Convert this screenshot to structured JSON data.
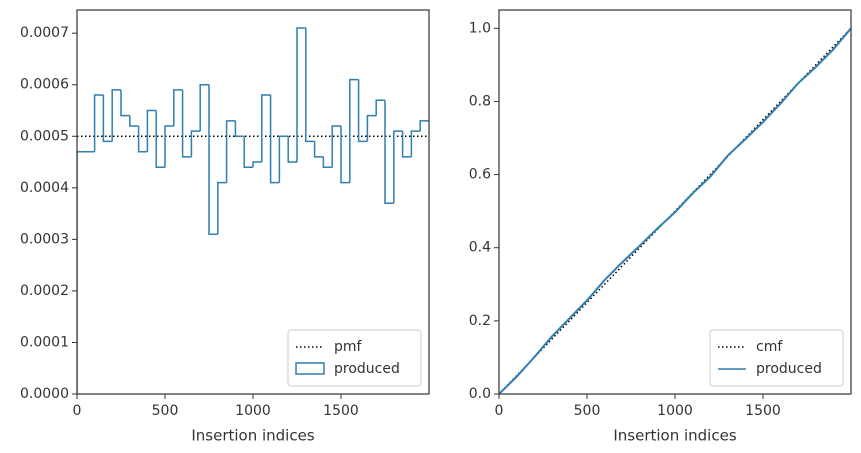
{
  "chart_data": [
    {
      "type": "histogram",
      "xlabel": "Insertion indices",
      "xlim": [
        0,
        2000
      ],
      "xticks": [
        0,
        500,
        1000,
        1500
      ],
      "ylim": [
        0,
        0.000745
      ],
      "yticks": [
        {
          "value": 0,
          "label": "0.0000"
        },
        {
          "value": 0.0001,
          "label": "0.0001"
        },
        {
          "value": 0.0002,
          "label": "0.0002"
        },
        {
          "value": 0.0003,
          "label": "0.0003"
        },
        {
          "value": 0.0004,
          "label": "0.0004"
        },
        {
          "value": 0.0005,
          "label": "0.0005"
        },
        {
          "value": 0.0006,
          "label": "0.0006"
        },
        {
          "value": 0.0007,
          "label": "0.0007"
        }
      ],
      "legend": "lower right",
      "series": [
        {
          "name": "pmf",
          "x": [
            0,
            2000
          ],
          "values": [
            0.0005,
            0.0005
          ],
          "color": "#000000",
          "style": "dotted"
        }
      ],
      "histogram": {
        "name": "produced",
        "color": "#2f7fb0",
        "bins": [
          0,
          50,
          100,
          150,
          200,
          250,
          300,
          350,
          400,
          450,
          500,
          550,
          600,
          650,
          700,
          750,
          800,
          850,
          900,
          950,
          1000,
          1050,
          1100,
          1150,
          1200,
          1250,
          1300,
          1350,
          1400,
          1450,
          1500,
          1550,
          1600,
          1650,
          1700,
          1750,
          1800,
          1850,
          1900,
          1950,
          2000
        ],
        "counts": [
          0.00047,
          0.00047,
          0.00058,
          0.00049,
          0.00059,
          0.00054,
          0.00052,
          0.00047,
          0.00055,
          0.00044,
          0.00052,
          0.00059,
          0.00046,
          0.00051,
          0.0006,
          0.00031,
          0.00041,
          0.00053,
          0.0005,
          0.00044,
          0.00045,
          0.00058,
          0.00041,
          0.0005,
          0.00045,
          0.00071,
          0.00049,
          0.00046,
          0.00044,
          0.00052,
          0.00041,
          0.00061,
          0.00049,
          0.00054,
          0.00057,
          0.00037,
          0.00051,
          0.00046,
          0.00051,
          0.00053
        ]
      }
    },
    {
      "type": "line",
      "xlabel": "Insertion indices",
      "xlim": [
        0,
        2000
      ],
      "xticks": [
        0,
        500,
        1000,
        1500
      ],
      "ylim": [
        0,
        1.05
      ],
      "yticks": [
        {
          "value": 0,
          "label": "0.0"
        },
        {
          "value": 0.2,
          "label": "0.2"
        },
        {
          "value": 0.4,
          "label": "0.4"
        },
        {
          "value": 0.6,
          "label": "0.6"
        },
        {
          "value": 0.8,
          "label": "0.8"
        },
        {
          "value": 1,
          "label": "1.0"
        }
      ],
      "legend": "lower right",
      "series": [
        {
          "name": "cmf",
          "x": [
            0,
            2000
          ],
          "values": [
            0,
            1
          ],
          "color": "#000000",
          "style": "dotted"
        },
        {
          "name": "produced",
          "color": "#2f7fb0",
          "style": "solid",
          "x": [
            0,
            100,
            200,
            300,
            400,
            500,
            600,
            700,
            800,
            900,
            1000,
            1100,
            1200,
            1300,
            1400,
            1500,
            1600,
            1700,
            1800,
            1900,
            2000
          ],
          "values": [
            0,
            0.047,
            0.1005,
            0.157,
            0.2065,
            0.256,
            0.3115,
            0.36,
            0.4055,
            0.4525,
            0.497,
            0.5485,
            0.594,
            0.652,
            0.697,
            0.7435,
            0.7945,
            0.85,
            0.894,
            0.9425,
            1.0
          ]
        }
      ]
    }
  ]
}
